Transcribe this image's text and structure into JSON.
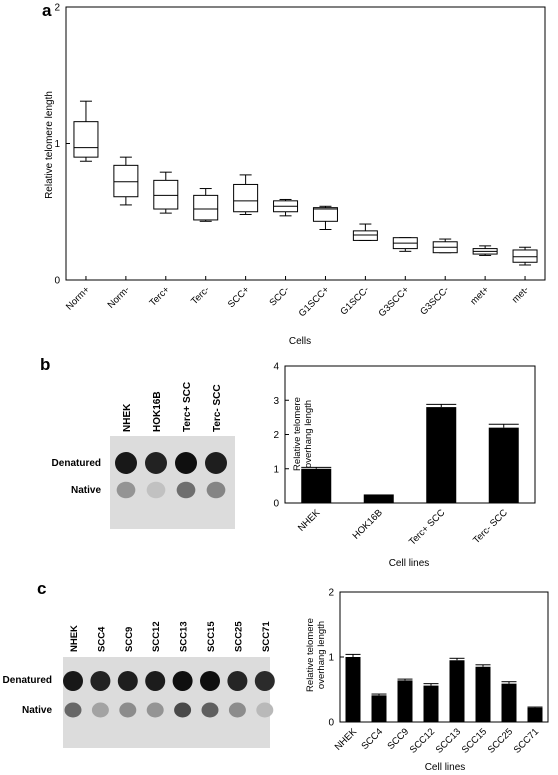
{
  "figure": {
    "panel_a_letter": "a",
    "panel_b_letter": "b",
    "panel_c_letter": "c"
  },
  "chart_data": [
    {
      "type": "box",
      "panel": "a",
      "xlabel": "Cells",
      "ylabel": "Relative telomere length",
      "ylim": [
        0,
        2
      ],
      "yticks": [
        0,
        1,
        2
      ],
      "grid": false,
      "categories": [
        "Norm+",
        "Norm-",
        "Terc+",
        "Terc-",
        "SCC+",
        "SCC-",
        "G1SCC+",
        "G1SCC-",
        "G3SCC+",
        "G3SCC-",
        "met+",
        "met-"
      ],
      "boxes": [
        {
          "min": 0.87,
          "q1": 0.9,
          "median": 0.97,
          "q3": 1.16,
          "max": 1.31
        },
        {
          "min": 0.55,
          "q1": 0.61,
          "median": 0.72,
          "q3": 0.84,
          "max": 0.9
        },
        {
          "min": 0.49,
          "q1": 0.52,
          "median": 0.62,
          "q3": 0.73,
          "max": 0.79
        },
        {
          "min": 0.43,
          "q1": 0.44,
          "median": 0.52,
          "q3": 0.62,
          "max": 0.67
        },
        {
          "min": 0.48,
          "q1": 0.5,
          "median": 0.58,
          "q3": 0.7,
          "max": 0.77
        },
        {
          "min": 0.47,
          "q1": 0.5,
          "median": 0.54,
          "q3": 0.58,
          "max": 0.59
        },
        {
          "min": 0.37,
          "q1": 0.43,
          "median": 0.52,
          "q3": 0.53,
          "max": 0.54
        },
        {
          "min": 0.29,
          "q1": 0.29,
          "median": 0.33,
          "q3": 0.36,
          "max": 0.41
        },
        {
          "min": 0.21,
          "q1": 0.23,
          "median": 0.27,
          "q3": 0.31,
          "max": 0.31
        },
        {
          "min": 0.2,
          "q1": 0.2,
          "median": 0.24,
          "q3": 0.28,
          "max": 0.3
        },
        {
          "min": 0.18,
          "q1": 0.19,
          "median": 0.21,
          "q3": 0.23,
          "max": 0.25
        },
        {
          "min": 0.11,
          "q1": 0.13,
          "median": 0.17,
          "q3": 0.22,
          "max": 0.24
        }
      ]
    },
    {
      "type": "bar",
      "panel": "b",
      "xlabel": "Cell lines",
      "ylabel": [
        "Relative telomere",
        "overhang length"
      ],
      "ylim": [
        0,
        4
      ],
      "yticks": [
        0,
        1,
        2,
        3,
        4
      ],
      "grid": false,
      "categories": [
        "NHEK",
        "HOK16B",
        "Terc+ SCC",
        "Terc- SCC"
      ],
      "values": [
        1.0,
        0.25,
        2.8,
        2.2
      ],
      "errors": [
        0.04,
        0.0,
        0.08,
        0.1
      ]
    },
    {
      "type": "bar",
      "panel": "c",
      "xlabel": "Cell lines",
      "ylabel": [
        "Relative telomere",
        "overhang length"
      ],
      "ylim": [
        0,
        2
      ],
      "yticks": [
        0,
        1,
        2
      ],
      "grid": false,
      "categories": [
        "NHEK",
        "SCC4",
        "SCC9",
        "SCC12",
        "SCC13",
        "SCC15",
        "SCC25",
        "SCC71"
      ],
      "values": [
        1.0,
        0.41,
        0.64,
        0.56,
        0.95,
        0.85,
        0.59,
        0.22
      ],
      "errors": [
        0.04,
        0.02,
        0.02,
        0.03,
        0.03,
        0.03,
        0.03,
        0.01
      ]
    }
  ],
  "blots": [
    {
      "panel": "b",
      "lanes": [
        "NHEK",
        "HOK16B",
        "Terc+ SCC",
        "Terc- SCC"
      ],
      "row_labels": [
        "Denatured",
        "Native"
      ],
      "denatured_intensity": [
        0.95,
        0.9,
        1.0,
        0.92
      ],
      "native_intensity": [
        0.45,
        0.15,
        0.7,
        0.55
      ]
    },
    {
      "panel": "c",
      "lanes": [
        "NHEK",
        "SCC4",
        "SCC9",
        "SCC12",
        "SCC13",
        "SCC15",
        "SCC25",
        "SCC71"
      ],
      "row_labels": [
        "Denatured",
        "Native"
      ],
      "denatured_intensity": [
        0.95,
        0.9,
        0.92,
        0.93,
        1.0,
        1.0,
        0.88,
        0.85
      ],
      "native_intensity": [
        0.75,
        0.35,
        0.5,
        0.45,
        0.95,
        0.8,
        0.5,
        0.2
      ]
    }
  ]
}
